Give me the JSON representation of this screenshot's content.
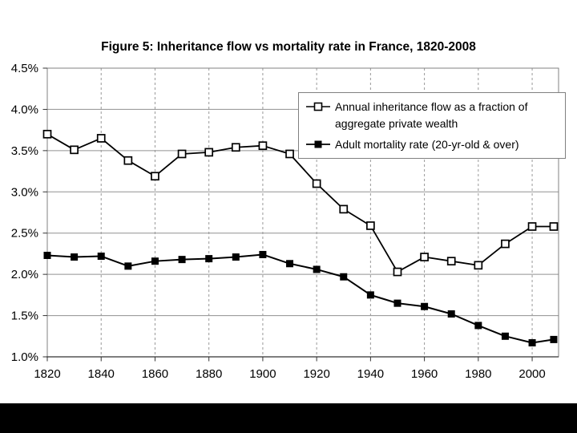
{
  "chart_data": {
    "type": "line",
    "title": "Figure 5: Inheritance flow vs mortality rate in France, 1820-2008",
    "x": [
      1820,
      1830,
      1840,
      1850,
      1860,
      1870,
      1880,
      1890,
      1900,
      1910,
      1920,
      1930,
      1940,
      1950,
      1960,
      1970,
      1980,
      1990,
      2000,
      2008
    ],
    "series": [
      {
        "name": "Annual inheritance flow as a fraction of aggregate private wealth",
        "marker": "open-square",
        "values": [
          3.7,
          3.51,
          3.65,
          3.38,
          3.19,
          3.46,
          3.48,
          3.54,
          3.56,
          3.46,
          3.1,
          2.79,
          2.59,
          2.03,
          2.21,
          2.16,
          2.11,
          2.37,
          2.58,
          2.58
        ]
      },
      {
        "name": "Adult mortality rate (20-yr-old & over)",
        "marker": "filled-square",
        "values": [
          2.23,
          2.21,
          2.22,
          2.1,
          2.16,
          2.18,
          2.19,
          2.21,
          2.24,
          2.13,
          2.06,
          1.97,
          1.75,
          1.65,
          1.61,
          1.52,
          1.38,
          1.25,
          1.17,
          1.21
        ]
      }
    ],
    "xticks": [
      1820,
      1840,
      1860,
      1880,
      1900,
      1920,
      1940,
      1960,
      1980,
      2000
    ],
    "xtick_labels": [
      "1820",
      "1840",
      "1860",
      "1880",
      "1900",
      "1920",
      "1940",
      "1960",
      "1980",
      "2000"
    ],
    "xlim": [
      1820,
      2009.8
    ],
    "ylim": [
      1.0,
      4.5
    ],
    "yticks": [
      1.0,
      1.5,
      2.0,
      2.5,
      3.0,
      3.5,
      4.0,
      4.5
    ],
    "ytick_labels": [
      "1.0%",
      "1.5%",
      "2.0%",
      "2.5%",
      "3.0%",
      "3.5%",
      "4.0%",
      "4.5%"
    ],
    "grid": {
      "horizontal": "solid",
      "vertical": "dashed"
    },
    "legend_position": "top-right",
    "colors": {
      "series": "#000000",
      "gridline": "#909090",
      "dashed_gridline": "#999999",
      "plot_border": "#808080",
      "axis": "#333333",
      "text": "#000000",
      "background": "#ffffff",
      "letterbox": "#000000"
    }
  }
}
